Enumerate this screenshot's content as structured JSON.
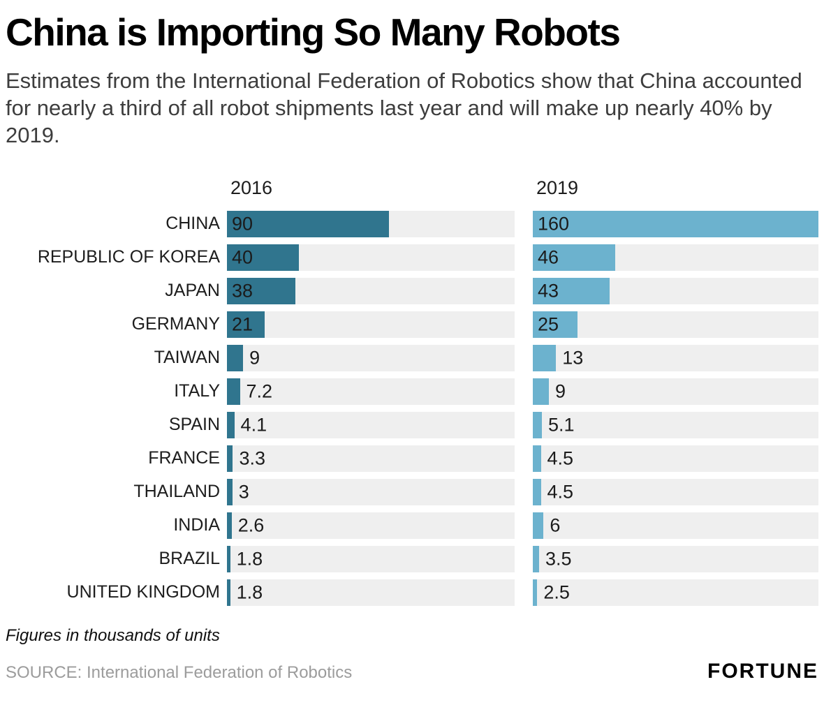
{
  "header": {
    "title": "China is Importing So Many Robots",
    "subtitle": "Estimates from the International Federation of Robotics show that China accounted for nearly a third of all robot shipments last year and will make up nearly 40% by 2019."
  },
  "chart_data": {
    "type": "bar",
    "orientation": "horizontal",
    "title": "China is Importing So Many Robots",
    "categories": [
      "CHINA",
      "REPUBLIC OF KOREA",
      "JAPAN",
      "GERMANY",
      "TAIWAN",
      "ITALY",
      "SPAIN",
      "FRANCE",
      "THAILAND",
      "INDIA",
      "BRAZIL",
      "UNITED KINGDOM"
    ],
    "series": [
      {
        "name": "2016",
        "color": "#30758e",
        "values": [
          90,
          40,
          38,
          21,
          9,
          7.2,
          4.1,
          3.3,
          3,
          2.6,
          1.8,
          1.8
        ]
      },
      {
        "name": "2019",
        "color": "#6cb2ce",
        "values": [
          160,
          46,
          43,
          25,
          13,
          9,
          5.1,
          4.5,
          4.5,
          6,
          3.5,
          2.5
        ]
      }
    ],
    "xmax": 160,
    "track_color": "#efefef",
    "grid": false,
    "legend_position": "column-headers",
    "units_note": "Figures in thousands of units"
  },
  "footer": {
    "note": "Figures in thousands of units",
    "source": "SOURCE: International Federation of Robotics",
    "brand": "FORTUNE"
  }
}
